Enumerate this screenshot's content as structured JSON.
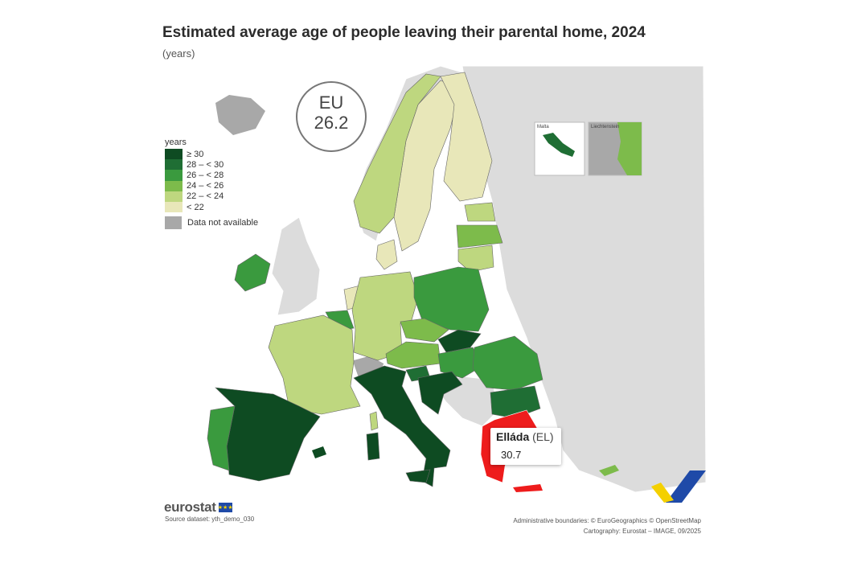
{
  "title": "Estimated average age of people leaving their parental home, 2024",
  "subtitle": "(years)",
  "eu_badge": {
    "label": "EU",
    "value": "26.2"
  },
  "legend": {
    "title": "years",
    "items": [
      {
        "label": "≥ 30",
        "color": "#0e4b22"
      },
      {
        "label": "28 – < 30",
        "color": "#1f6e34"
      },
      {
        "label": "26 – < 28",
        "color": "#3a9a3e"
      },
      {
        "label": "24 – < 26",
        "color": "#7dbb4b"
      },
      {
        "label": "22 – < 24",
        "color": "#bed77f"
      },
      {
        "label": "< 22",
        "color": "#e8e7b9"
      }
    ],
    "na_label": "Data not available",
    "na_color": "#a8a8a8"
  },
  "tooltip": {
    "name": "Elláda",
    "code": "(EL)",
    "value": "30.7"
  },
  "insets": {
    "malta": "Malta",
    "liechtenstein": "Liechtenstein"
  },
  "highlight_color": "#ee1c1c",
  "non_eu_color": "#dcdcdc",
  "logo": {
    "word": "eurostat",
    "flag_stars": "★★★"
  },
  "source": "Source dataset: yth_demo_030",
  "credits": [
    "Administrative boundaries: © EuroGeographics © OpenStreetMap",
    "Cartography: Eurostat – IMAGE, 09/2025"
  ]
}
